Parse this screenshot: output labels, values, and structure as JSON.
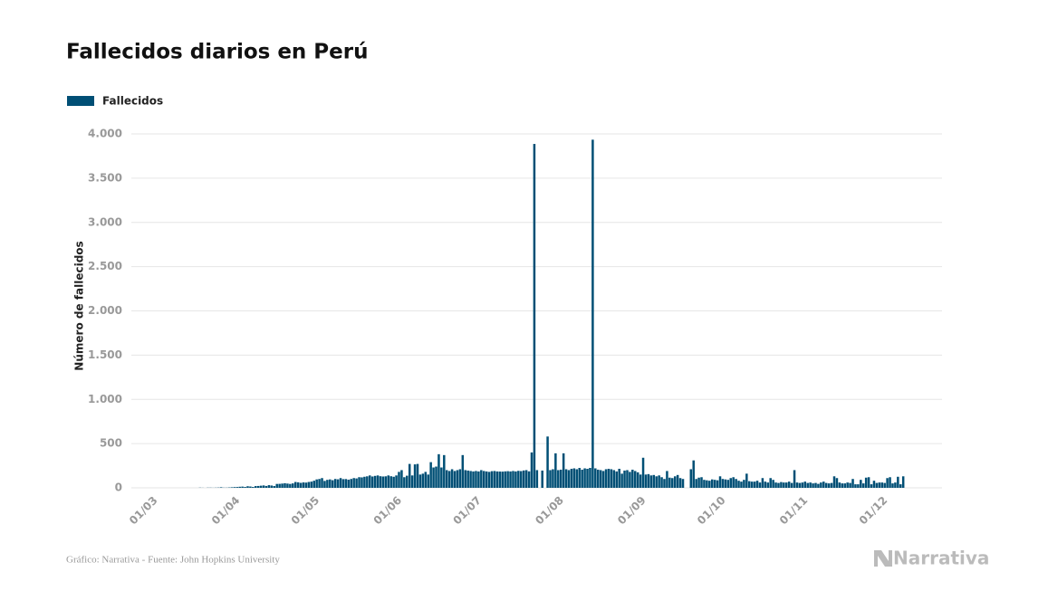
{
  "chart_data": {
    "type": "bar",
    "title": "Fallecidos diarios en Perú",
    "y_label": "Número de fallecidos",
    "source": "Gráfico: Narrativa - Fuente: John Hopkins University",
    "brand": "Narrativa",
    "color": "#004f75",
    "grid": true,
    "legend": "top-left",
    "series": [
      {
        "name": "Fallecidos",
        "color": "#004f75",
        "values": [
          0,
          0,
          0,
          0,
          0,
          0,
          0,
          0,
          0,
          0,
          0,
          0,
          0,
          0,
          0,
          0,
          0,
          0,
          2,
          1,
          0,
          2,
          2,
          1,
          2,
          3,
          6,
          2,
          2,
          4,
          6,
          8,
          9,
          12,
          14,
          10,
          18,
          15,
          10,
          20,
          21,
          24,
          27,
          21,
          30,
          26,
          20,
          44,
          45,
          48,
          52,
          48,
          44,
          50,
          66,
          62,
          56,
          61,
          59,
          66,
          70,
          80,
          95,
          100,
          110,
          78,
          90,
          95,
          86,
          100,
          96,
          110,
          98,
          99,
          92,
          100,
          110,
          106,
          120,
          118,
          125,
          130,
          140,
          128,
          135,
          140,
          131,
          128,
          130,
          140,
          131,
          125,
          140,
          180,
          200,
          120,
          137,
          270,
          140,
          265,
          270,
          150,
          160,
          180,
          150,
          290,
          230,
          240,
          380,
          230,
          370,
          200,
          190,
          210,
          190,
          200,
          210,
          370,
          200,
          195,
          190,
          185,
          190,
          185,
          200,
          190,
          185,
          180,
          188,
          190,
          185,
          184,
          183,
          186,
          188,
          185,
          190,
          185,
          192,
          189,
          196,
          200,
          186,
          400,
          3887,
          200,
          0,
          195,
          0,
          580,
          200,
          210,
          390,
          200,
          205,
          390,
          210,
          200,
          215,
          220,
          210,
          225,
          205,
          220,
          215,
          225,
          3935,
          220,
          205,
          200,
          190,
          210,
          215,
          210,
          200,
          185,
          215,
          160,
          195,
          200,
          180,
          205,
          190,
          175,
          150,
          340,
          150,
          155,
          140,
          145,
          130,
          140,
          120,
          100,
          190,
          115,
          110,
          130,
          145,
          110,
          100,
          0,
          0,
          210,
          310,
          100,
          115,
          120,
          90,
          85,
          80,
          95,
          90,
          85,
          130,
          100,
          95,
          90,
          110,
          120,
          100,
          80,
          70,
          90,
          160,
          75,
          70,
          70,
          80,
          60,
          110,
          70,
          60,
          110,
          90,
          60,
          55,
          65,
          60,
          60,
          70,
          55,
          200,
          60,
          55,
          60,
          70,
          55,
          60,
          50,
          55,
          45,
          60,
          70,
          55,
          50,
          55,
          130,
          110,
          60,
          50,
          50,
          60,
          55,
          100,
          40,
          40,
          90,
          50,
          115,
          120,
          40,
          80,
          55,
          60,
          60,
          55,
          110,
          120,
          50,
          60,
          125,
          40,
          130
        ]
      }
    ],
    "categories": [
      "01/03",
      null,
      null,
      null,
      null,
      null,
      null,
      null,
      null,
      null,
      null,
      null,
      null,
      null,
      null,
      null,
      null,
      null,
      null,
      null,
      null,
      null,
      null,
      null,
      null,
      null,
      null,
      null,
      null,
      null,
      null,
      "01/04",
      null,
      null,
      null,
      null,
      null,
      null,
      null,
      null,
      null,
      null,
      null,
      null,
      null,
      null,
      null,
      null,
      null,
      null,
      null,
      null,
      null,
      null,
      null,
      null,
      null,
      null,
      null,
      null,
      null,
      "01/05",
      null,
      null,
      null,
      null,
      null,
      null,
      null,
      null,
      null,
      null,
      null,
      null,
      null,
      null,
      null,
      null,
      null,
      null,
      null,
      null,
      null,
      null,
      null,
      null,
      null,
      null,
      null,
      null,
      null,
      null,
      "01/06",
      null,
      null,
      null,
      null,
      null,
      null,
      null,
      null,
      null,
      null,
      null,
      null,
      null,
      null,
      null,
      null,
      null,
      null,
      null,
      null,
      null,
      null,
      null,
      null,
      null,
      null,
      null,
      null,
      null,
      "01/07",
      null,
      null,
      null,
      null,
      null,
      null,
      null,
      null,
      null,
      null,
      null,
      null,
      null,
      null,
      null,
      null,
      null,
      null,
      null,
      null,
      null,
      null,
      null,
      null,
      null,
      null,
      null,
      null,
      null,
      null,
      "01/08",
      null,
      null,
      null,
      null,
      null,
      null,
      null,
      null,
      null,
      null,
      null,
      null,
      null,
      null,
      null,
      null,
      null,
      null,
      null,
      null,
      null,
      null,
      null,
      null,
      null,
      null,
      null,
      null,
      null,
      null,
      "01/09",
      null,
      null,
      null,
      null,
      null,
      null,
      null,
      null,
      null,
      null,
      null,
      null,
      null,
      null,
      null,
      null,
      null,
      null,
      null,
      null,
      null,
      null,
      null,
      null,
      null,
      null,
      null,
      null,
      null,
      "01/10",
      null,
      null,
      null,
      null,
      null,
      null,
      null,
      null,
      null,
      null,
      null,
      null,
      null,
      null,
      null,
      null,
      null,
      null,
      null,
      null,
      null,
      null,
      null,
      null,
      null,
      null,
      null,
      null,
      null,
      null,
      "01/11",
      null,
      null,
      null,
      null,
      null,
      null,
      null,
      null,
      null,
      null,
      null,
      null,
      null,
      null,
      null,
      null,
      null,
      null,
      null,
      null,
      null,
      null,
      null,
      null,
      null,
      null,
      null,
      null,
      null,
      "01/12",
      null,
      null,
      null,
      null,
      null,
      null,
      null,
      null
    ],
    "ylim": [
      0,
      4000
    ],
    "yticks": [
      0,
      500,
      {
        "value": 1000,
        "label": "1.000"
      },
      {
        "value": 1500,
        "label": "1.500"
      },
      {
        "value": 2000,
        "label": "2.000"
      },
      {
        "value": 2500,
        "label": "2.500"
      },
      {
        "value": 3000,
        "label": "3.000"
      },
      {
        "value": 3500,
        "label": "3.500"
      },
      {
        "value": 4000,
        "label": "4.000"
      }
    ]
  }
}
